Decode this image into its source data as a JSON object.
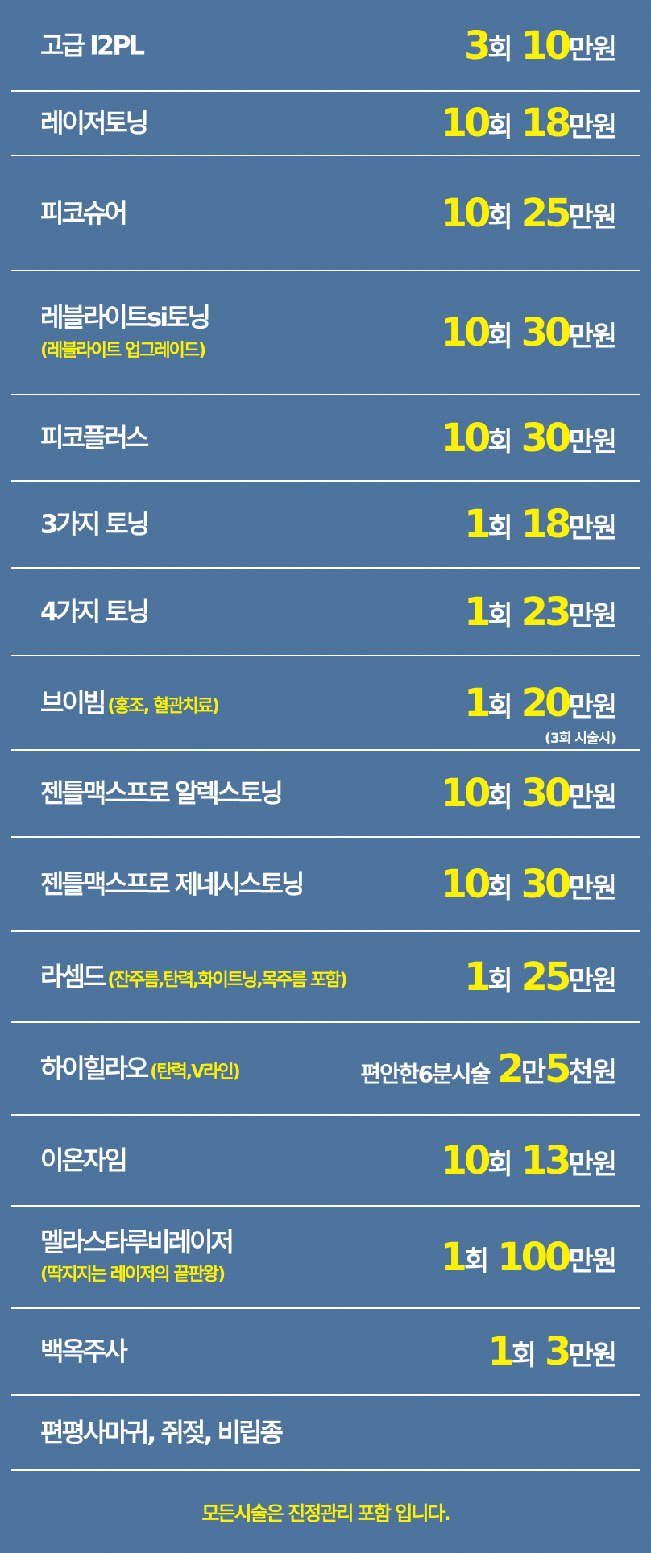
{
  "colors": {
    "background": "#4b729c",
    "accent": "#fff200",
    "text": "#ffffff"
  },
  "items": [
    {
      "name": "고급 I2PL",
      "price": [
        {
          "t": "3",
          "y": true
        },
        {
          "t": "회"
        },
        {
          "gap": true
        },
        {
          "t": "10",
          "y": true
        },
        {
          "t": "만원"
        }
      ]
    },
    {
      "name": "레이저토닝",
      "price": [
        {
          "t": "10",
          "y": true
        },
        {
          "t": "회"
        },
        {
          "gap": true
        },
        {
          "t": "18",
          "y": true
        },
        {
          "t": "만원"
        }
      ]
    },
    {
      "name": "피코슈어",
      "price": [
        {
          "t": "10",
          "y": true
        },
        {
          "t": "회"
        },
        {
          "gap": true
        },
        {
          "t": "25",
          "y": true
        },
        {
          "t": "만원"
        }
      ]
    },
    {
      "name": "레블라이트si토닝",
      "sub": "(레블라이트 업그레이드)",
      "price": [
        {
          "t": "10",
          "y": true
        },
        {
          "t": "회"
        },
        {
          "gap": true
        },
        {
          "t": "30",
          "y": true
        },
        {
          "t": "만원"
        }
      ]
    },
    {
      "name": "피코플러스",
      "price": [
        {
          "t": "10",
          "y": true
        },
        {
          "t": "회"
        },
        {
          "gap": true
        },
        {
          "t": "30",
          "y": true
        },
        {
          "t": "만원"
        }
      ]
    },
    {
      "name": "3가지 토닝",
      "price": [
        {
          "t": "1",
          "y": true
        },
        {
          "t": "회"
        },
        {
          "gap": true
        },
        {
          "t": "18",
          "y": true
        },
        {
          "t": "만원"
        }
      ]
    },
    {
      "name": "4가지 토닝",
      "price": [
        {
          "t": "1",
          "y": true
        },
        {
          "t": "회"
        },
        {
          "gap": true
        },
        {
          "t": "23",
          "y": true
        },
        {
          "t": "만원"
        }
      ]
    },
    {
      "name": "브이빔",
      "sub_inline": "(홍조, 혈관치료)",
      "price": [
        {
          "t": "1",
          "y": true
        },
        {
          "t": "회"
        },
        {
          "gap": true
        },
        {
          "t": "20",
          "y": true
        },
        {
          "t": "만원"
        }
      ],
      "note": "(3회 시술시)"
    },
    {
      "name": "젠틀맥스프로 알렉스토닝",
      "price": [
        {
          "t": "10",
          "y": true
        },
        {
          "t": "회"
        },
        {
          "gap": true
        },
        {
          "t": "30",
          "y": true
        },
        {
          "t": "만원"
        }
      ]
    },
    {
      "name": "젠틀맥스프로 제네시스토닝",
      "price": [
        {
          "t": "10",
          "y": true
        },
        {
          "t": "회"
        },
        {
          "gap": true
        },
        {
          "t": "30",
          "y": true
        },
        {
          "t": "만원"
        }
      ]
    },
    {
      "name": "라셈드",
      "sub_inline": "(잔주름,탄력,화이트닝,목주름 포함)",
      "price": [
        {
          "t": "1",
          "y": true
        },
        {
          "t": "회"
        },
        {
          "gap": true
        },
        {
          "t": "25",
          "y": true
        },
        {
          "t": "만원"
        }
      ]
    },
    {
      "name": "하이힐라오",
      "sub_inline": "(탄력,V라인)",
      "price": [
        {
          "t": "편안한6분시술",
          "pre": true
        },
        {
          "t": "2",
          "y": true
        },
        {
          "t": "만"
        },
        {
          "t": "5",
          "y": true
        },
        {
          "t": "천원"
        }
      ]
    },
    {
      "name": "이온자임",
      "price": [
        {
          "t": "10",
          "y": true
        },
        {
          "t": "회"
        },
        {
          "gap": true
        },
        {
          "t": "13",
          "y": true
        },
        {
          "t": "만원"
        }
      ]
    },
    {
      "name": "멜라스타루비레이저",
      "sub": "(딱지지는 레이저의 끝판왕)",
      "price": [
        {
          "t": "1",
          "y": true
        },
        {
          "t": "회"
        },
        {
          "gap": true
        },
        {
          "t": "100",
          "y": true
        },
        {
          "t": "만원"
        }
      ]
    },
    {
      "name": "백옥주사",
      "price": [
        {
          "t": "1",
          "y": true
        },
        {
          "t": "회"
        },
        {
          "gap": true
        },
        {
          "t": "3",
          "y": true
        },
        {
          "t": "만원"
        }
      ]
    },
    {
      "name": "편평사마귀, 쥐젖, 비립종"
    }
  ],
  "footer": "모든시술은 진정관리 포함 입니다."
}
